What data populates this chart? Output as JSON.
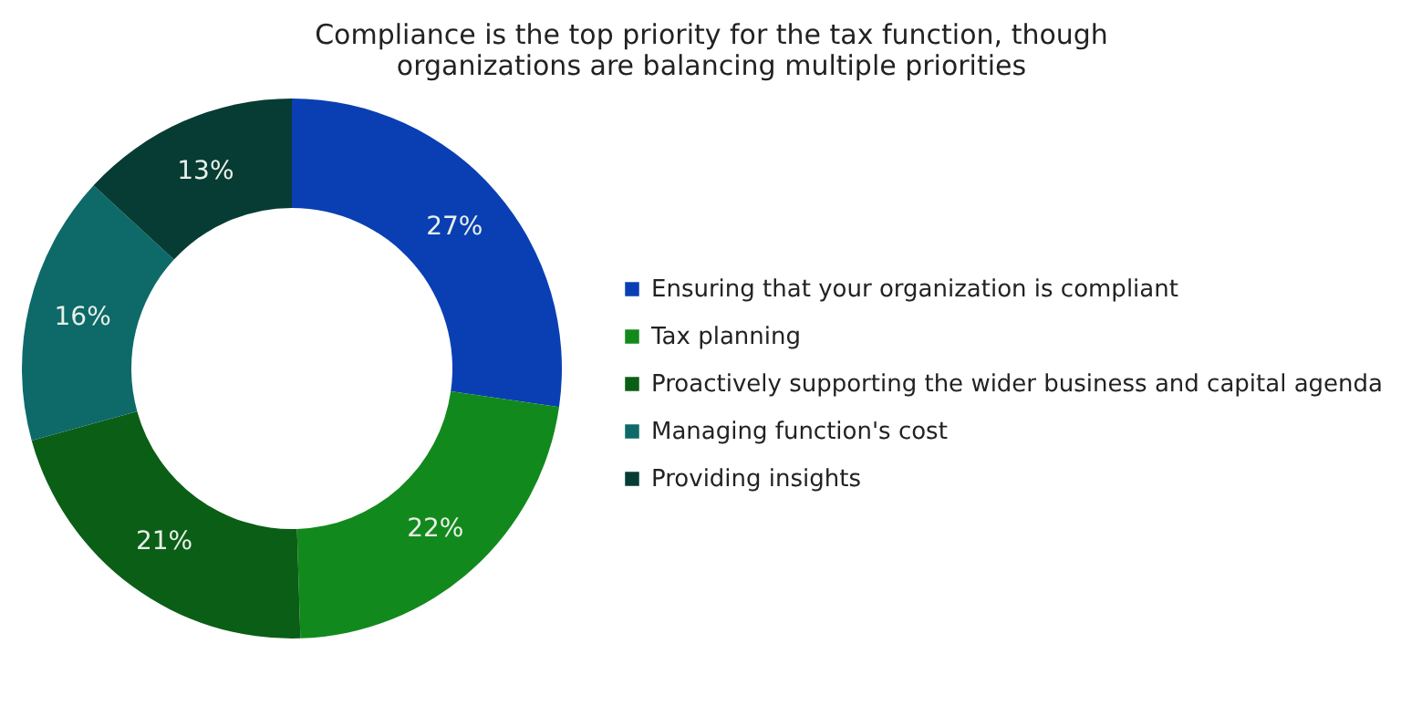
{
  "chart_data": {
    "type": "donut",
    "title": "Compliance is the top priority for the tax function, though organizations are balancing multiple priorities",
    "categories": [
      "Ensuring that your organization is compliant",
      "Tax planning",
      "Proactively supporting the wider business and capital agenda",
      "Managing function's cost",
      "Providing insights"
    ],
    "values": [
      27,
      22,
      21,
      16,
      13
    ],
    "value_labels": [
      "27%",
      "22%",
      "21%",
      "16%",
      "13%"
    ],
    "colors": [
      "#0a3fb4",
      "#12891c",
      "#0b5e16",
      "#0d6a68",
      "#063c34"
    ],
    "legend": "right"
  }
}
